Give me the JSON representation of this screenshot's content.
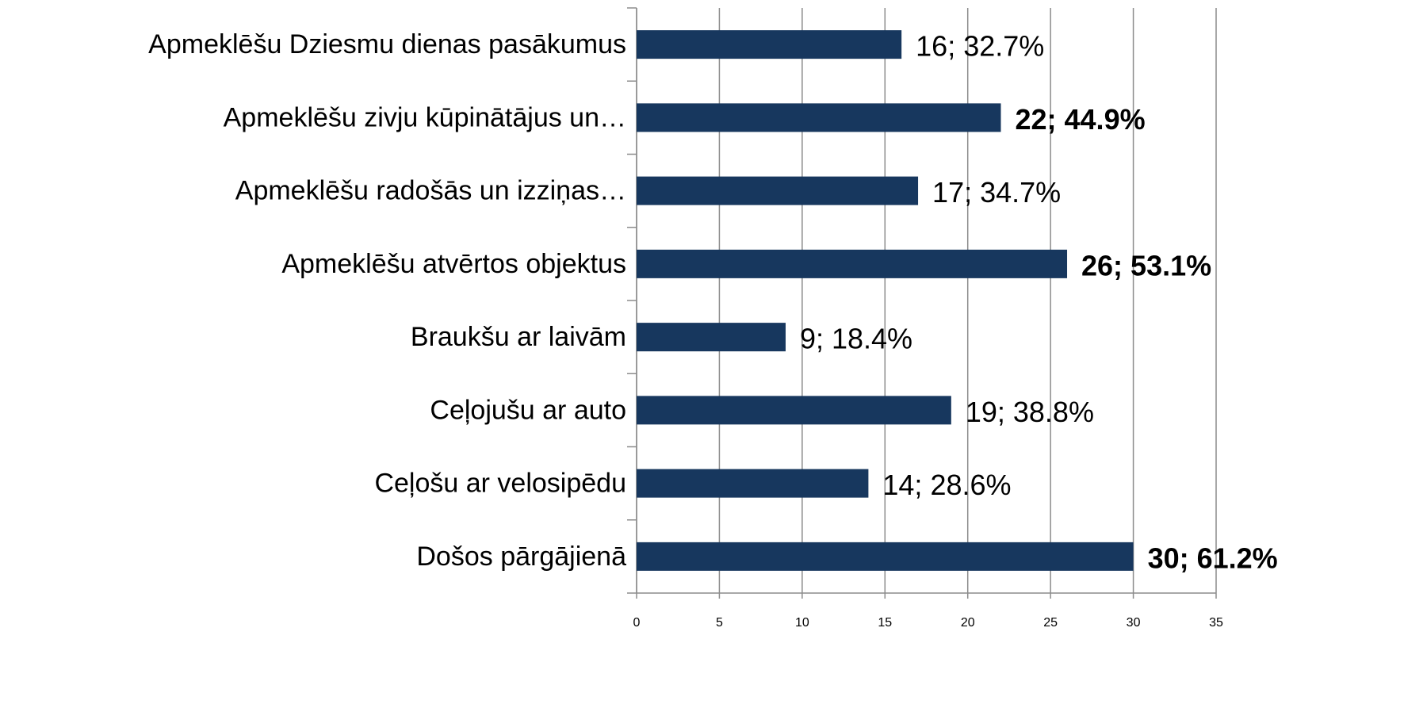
{
  "chart_data": {
    "type": "bar",
    "orientation": "horizontal",
    "categories": [
      "Apmeklēšu Dziesmu dienas pasākumus",
      "Apmeklēšu zivju kūpinātājus un…",
      "Apmeklēšu radošās un izziņas…",
      "Apmeklēšu atvērtos objektus",
      "Braukšu ar laivām",
      "Ceļojušu ar auto",
      "Ceļošu ar velosipēdu",
      "Došos pārgājienā"
    ],
    "values": [
      16,
      22,
      17,
      26,
      9,
      19,
      14,
      30
    ],
    "value_labels": [
      "16; 32.7%",
      "22; 44.9%",
      "17; 34.7%",
      "26; 53.1%",
      "9; 18.4%",
      "19; 38.8%",
      "14; 28.6%",
      "30; 61.2%"
    ],
    "value_label_colors": [
      "#000000",
      "#92d050",
      "#000000",
      "#558ed5",
      "#000000",
      "#000000",
      "#000000",
      "#ff0000"
    ],
    "color": "#17375e",
    "xlim": [
      0,
      35
    ],
    "xticks": [
      0,
      5,
      10,
      15,
      20,
      25,
      30,
      35
    ],
    "grid": true
  }
}
